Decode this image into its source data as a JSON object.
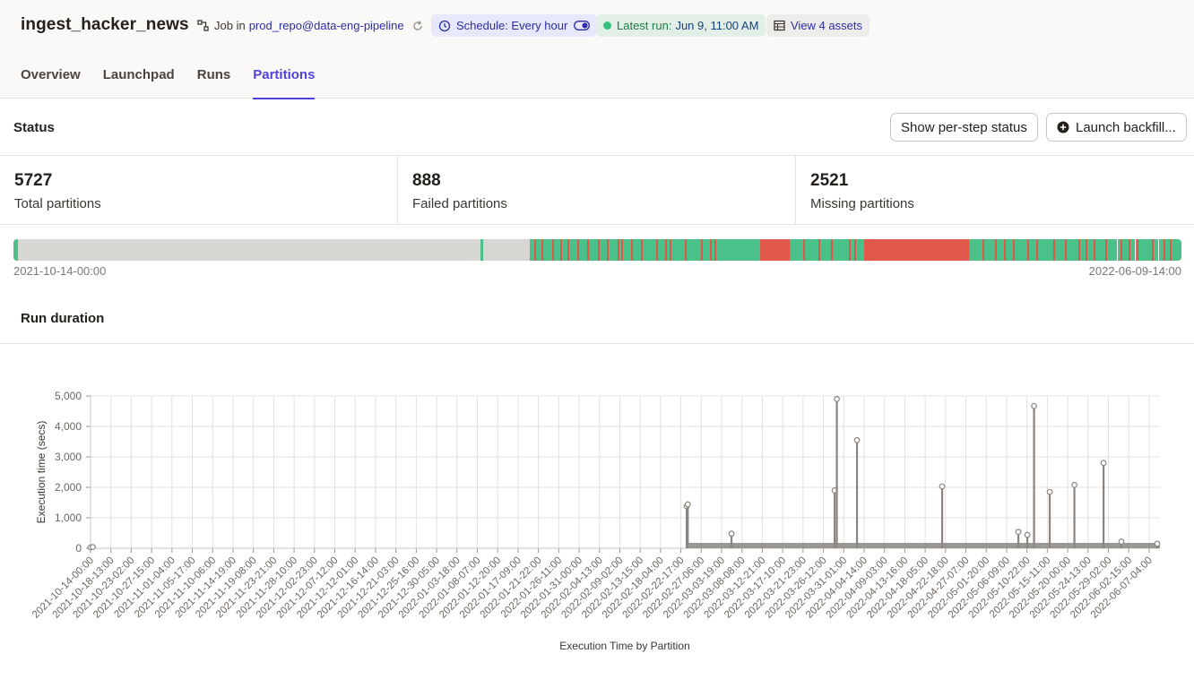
{
  "header": {
    "title": "ingest_hacker_news",
    "job_prefix": "Job in",
    "job_link": "prod_repo@data-eng-pipeline",
    "schedule": "Schedule: Every hour",
    "latest_run_label": "Latest run:",
    "latest_run_value": "Jun 9, 11:00 AM",
    "assets": "View 4 assets"
  },
  "tabs": [
    {
      "label": "Overview",
      "active": false
    },
    {
      "label": "Launchpad",
      "active": false
    },
    {
      "label": "Runs",
      "active": false
    },
    {
      "label": "Partitions",
      "active": true
    }
  ],
  "status": {
    "title": "Status",
    "show_step_button": "Show per-step status",
    "backfill_button": "Launch backfill..."
  },
  "stats": [
    {
      "value": "5727",
      "label": "Total partitions"
    },
    {
      "value": "888",
      "label": "Failed partitions"
    },
    {
      "value": "2521",
      "label": "Missing partitions"
    }
  ],
  "partition_bar": {
    "start_label": "2021-10-14-00:00",
    "end_label": "2022-06-09-14:00",
    "colors": {
      "missing": "#d8d6d3",
      "success": "#4bc18a",
      "failed": "#e0584a"
    },
    "segments": [
      {
        "status": "success",
        "from": 0.0,
        "to": 0.004
      },
      {
        "status": "missing",
        "from": 0.004,
        "to": 0.4
      },
      {
        "status": "success",
        "from": 0.4,
        "to": 0.402
      },
      {
        "status": "missing",
        "from": 0.402,
        "to": 0.442
      },
      {
        "status": "success",
        "from": 0.442,
        "to": 0.639
      },
      {
        "status": "failed",
        "from": 0.639,
        "to": 0.665
      },
      {
        "status": "success",
        "from": 0.665,
        "to": 0.728
      },
      {
        "status": "failed",
        "from": 0.728,
        "to": 0.818
      },
      {
        "status": "success",
        "from": 0.818,
        "to": 1.0
      }
    ],
    "failed_ticks": [
      0.446,
      0.452,
      0.461,
      0.468,
      0.474,
      0.483,
      0.491,
      0.5,
      0.508,
      0.517,
      0.52,
      0.529,
      0.537,
      0.55,
      0.558,
      0.562,
      0.575,
      0.589,
      0.596,
      0.6,
      0.676,
      0.689,
      0.7,
      0.715,
      0.72,
      0.83,
      0.84,
      0.848,
      0.856,
      0.868,
      0.876,
      0.89,
      0.9,
      0.912,
      0.918,
      0.925,
      0.935,
      0.948,
      0.955,
      0.962,
      0.975,
      0.985,
      0.99
    ],
    "white_ticks": [
      0.945,
      0.96,
      0.98
    ]
  },
  "run_duration": {
    "title": "Run duration"
  },
  "chart_data": {
    "type": "line",
    "title": "",
    "xlabel": "Execution Time by Partition",
    "ylabel": "Execution time (secs)",
    "ylim": [
      0,
      5000
    ],
    "yticks": [
      "0",
      "1,000",
      "2,000",
      "3,000",
      "4,000",
      "5,000"
    ],
    "grid": true,
    "color": "#8a8580",
    "xlim": [
      "2021-10-14-00:00",
      "2022-06-09-14:00"
    ],
    "categories": [
      "2021-10-14-00:00",
      "2021-10-18-13:00",
      "2021-10-23-02:00",
      "2021-10-27-15:00",
      "2021-11-01-04:00",
      "2021-11-05-17:00",
      "2021-11-10-06:00",
      "2021-11-14-19:00",
      "2021-11-19-08:00",
      "2021-11-23-21:00",
      "2021-11-28-10:00",
      "2021-12-02-23:00",
      "2021-12-07-12:00",
      "2021-12-12-01:00",
      "2021-12-16-14:00",
      "2021-12-21-03:00",
      "2021-12-25-16:00",
      "2021-12-30-05:00",
      "2022-01-03-18:00",
      "2022-01-08-07:00",
      "2022-01-12-20:00",
      "2022-01-17-09:00",
      "2022-01-21-22:00",
      "2022-01-26-11:00",
      "2022-01-31-00:00",
      "2022-02-04-13:00",
      "2022-02-09-02:00",
      "2022-02-13-15:00",
      "2022-02-18-04:00",
      "2022-02-22-17:00",
      "2022-02-27-06:00",
      "2022-03-03-19:00",
      "2022-03-08-08:00",
      "2022-03-12-21:00",
      "2022-03-17-10:00",
      "2022-03-21-23:00",
      "2022-03-26-12:00",
      "2022-03-31-01:00",
      "2022-04-04-14:00",
      "2022-04-09-03:00",
      "2022-04-13-16:00",
      "2022-04-18-05:00",
      "2022-04-22-18:00",
      "2022-04-27-07:00",
      "2022-05-01-20:00",
      "2022-05-06-09:00",
      "2022-05-10-22:00",
      "2022-05-15-11:00",
      "2022-05-20-00:00",
      "2022-05-24-13:00",
      "2022-05-29-02:00",
      "2022-06-02-15:00",
      "2022-06-07-04:00"
    ],
    "points": [
      {
        "x": "2021-10-14-00:00",
        "y": 30
      },
      {
        "x": "2021-10-14-12:00",
        "y": 40
      },
      {
        "x": "2022-02-24-00:00",
        "y": 1380
      },
      {
        "x": "2022-02-24-06:00",
        "y": 1440
      },
      {
        "x": "2022-03-06-00:00",
        "y": 480
      },
      {
        "x": "2022-03-29-00:00",
        "y": 1900
      },
      {
        "x": "2022-03-29-12:00",
        "y": 4900
      },
      {
        "x": "2022-04-03-00:00",
        "y": 3550
      },
      {
        "x": "2022-04-22-00:00",
        "y": 2030
      },
      {
        "x": "2022-05-09-00:00",
        "y": 540
      },
      {
        "x": "2022-05-11-00:00",
        "y": 440
      },
      {
        "x": "2022-05-12-12:00",
        "y": 4670
      },
      {
        "x": "2022-05-16-00:00",
        "y": 1850
      },
      {
        "x": "2022-05-21-12:00",
        "y": 2080
      },
      {
        "x": "2022-05-28-00:00",
        "y": 2800
      },
      {
        "x": "2022-06-01-00:00",
        "y": 220
      },
      {
        "x": "2022-06-09-00:00",
        "y": 150
      }
    ],
    "baseline_range": [
      "2022-02-24-00:00",
      "2022-06-09-14:00"
    ],
    "baseline_level": 80
  }
}
